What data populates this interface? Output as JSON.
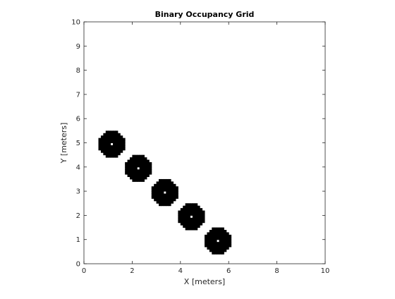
{
  "chart_data": {
    "type": "heatmap",
    "title": "Binary Occupancy Grid",
    "xlabel": "X [meters]",
    "ylabel": "Y [meters]",
    "xlim": [
      0,
      10
    ],
    "ylim": [
      0,
      10
    ],
    "x_ticks": [
      "0",
      "2",
      "4",
      "6",
      "8",
      "10"
    ],
    "y_ticks": [
      "0",
      "1",
      "2",
      "3",
      "4",
      "5",
      "6",
      "7",
      "8",
      "9",
      "10"
    ],
    "grid": false,
    "resolution_cells_per_meter": 10,
    "occupied_color": "#000000",
    "free_color": "#ffffff",
    "inflated_obstacles": [
      {
        "x": 1.15,
        "y": 4.95,
        "radius": 0.55
      },
      {
        "x": 2.25,
        "y": 3.95,
        "radius": 0.55
      },
      {
        "x": 3.35,
        "y": 2.95,
        "radius": 0.55
      },
      {
        "x": 4.45,
        "y": 1.95,
        "radius": 0.55
      },
      {
        "x": 5.55,
        "y": 0.95,
        "radius": 0.55
      }
    ]
  }
}
